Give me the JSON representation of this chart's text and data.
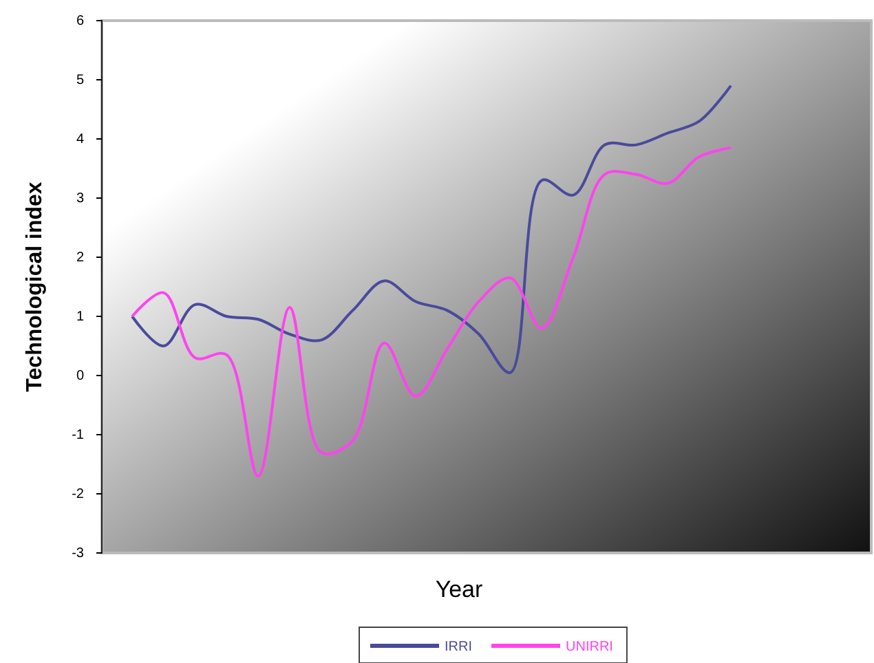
{
  "chart_data": {
    "type": "line",
    "xlabel": "Year",
    "ylabel": "Technological index",
    "categories": [
      null,
      null,
      null,
      null,
      null,
      null,
      null,
      null,
      null,
      null,
      null,
      null,
      null,
      null,
      null,
      null,
      null,
      null,
      null,
      null
    ],
    "series": [
      {
        "name": "IRRI",
        "color": "#4a4a9c",
        "values": [
          1.0,
          0.5,
          1.2,
          1.0,
          0.95,
          0.7,
          0.6,
          1.1,
          1.6,
          1.25,
          1.1,
          0.7,
          0.05,
          3.3,
          3.05,
          3.9,
          3.9,
          4.1,
          4.3,
          4.9
        ]
      },
      {
        "name": "UNIRRI",
        "color": "#ff44ee",
        "values": [
          1.0,
          1.4,
          0.3,
          0.35,
          -1.7,
          1.15,
          -1.3,
          -1.1,
          0.55,
          -0.35,
          0.45,
          1.25,
          1.65,
          0.8,
          2.0,
          3.4,
          3.4,
          3.25,
          3.7,
          3.85
        ]
      }
    ],
    "ylim": [
      -3,
      6
    ],
    "yticks": [
      -3,
      -2,
      -1,
      0,
      1,
      2,
      3,
      4,
      5,
      6
    ],
    "grid": false,
    "legend": "bottom",
    "marker": "none",
    "line_style": "solid"
  }
}
